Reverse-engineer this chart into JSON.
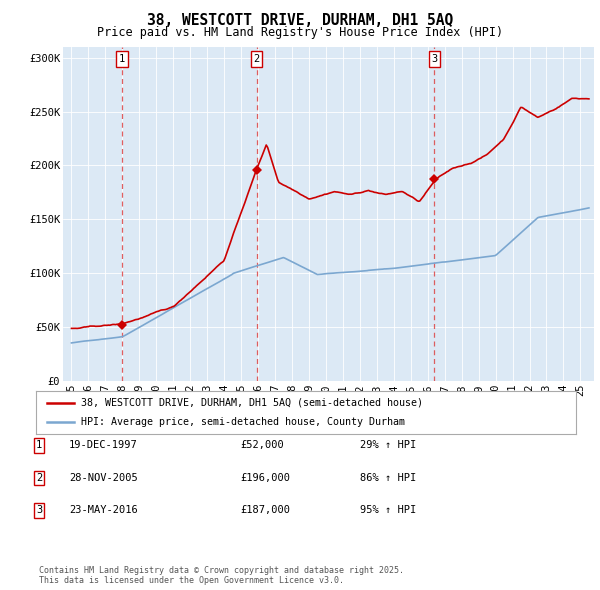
{
  "title": "38, WESTCOTT DRIVE, DURHAM, DH1 5AQ",
  "subtitle": "Price paid vs. HM Land Registry's House Price Index (HPI)",
  "legend_property": "38, WESTCOTT DRIVE, DURHAM, DH1 5AQ (semi-detached house)",
  "legend_hpi": "HPI: Average price, semi-detached house, County Durham",
  "footnote": "Contains HM Land Registry data © Crown copyright and database right 2025.\nThis data is licensed under the Open Government Licence v3.0.",
  "sale_events": [
    {
      "num": 1,
      "date": "19-DEC-1997",
      "price": 52000,
      "hpi_pct": "29% ↑ HPI",
      "x_year": 1997.97
    },
    {
      "num": 2,
      "date": "28-NOV-2005",
      "price": 196000,
      "hpi_pct": "86% ↑ HPI",
      "x_year": 2005.91
    },
    {
      "num": 3,
      "date": "23-MAY-2016",
      "price": 187000,
      "hpi_pct": "95% ↑ HPI",
      "x_year": 2016.39
    }
  ],
  "ylim": [
    0,
    310000
  ],
  "xlim_start": 1994.5,
  "xlim_end": 2025.8,
  "yticks": [
    0,
    50000,
    100000,
    150000,
    200000,
    250000,
    300000
  ],
  "ytick_labels": [
    "£0",
    "£50K",
    "£100K",
    "£150K",
    "£200K",
    "£250K",
    "£300K"
  ],
  "background_color": "#dce9f5",
  "line_color_property": "#cc0000",
  "line_color_hpi": "#7ba7d0",
  "marker_color": "#cc0000",
  "dashed_line_color": "#dd4444",
  "box_color_border": "#cc0000",
  "xtick_years": [
    1995,
    1996,
    1997,
    1998,
    1999,
    2000,
    2001,
    2002,
    2003,
    2004,
    2005,
    2006,
    2007,
    2008,
    2009,
    2010,
    2011,
    2012,
    2013,
    2014,
    2015,
    2016,
    2017,
    2018,
    2019,
    2020,
    2021,
    2022,
    2023,
    2024,
    2025
  ]
}
